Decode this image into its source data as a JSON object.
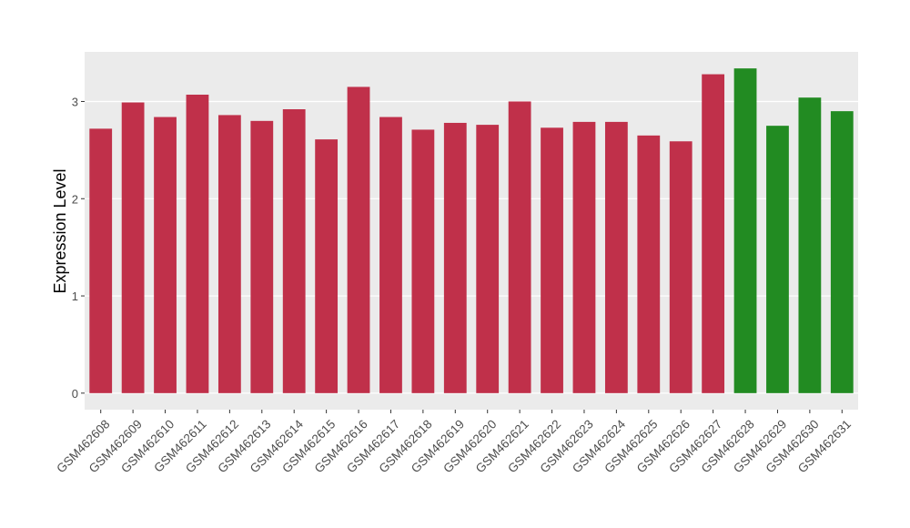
{
  "chart_data": {
    "type": "bar",
    "y_label": "Expression Level",
    "categories": [
      "GSM462608",
      "GSM462609",
      "GSM462610",
      "GSM462611",
      "GSM462612",
      "GSM462613",
      "GSM462614",
      "GSM462615",
      "GSM462616",
      "GSM462617",
      "GSM462618",
      "GSM462619",
      "GSM462620",
      "GSM462621",
      "GSM462622",
      "GSM462623",
      "GSM462624",
      "GSM462625",
      "GSM462626",
      "GSM462627",
      "GSM462628",
      "GSM462629",
      "GSM462630",
      "GSM462631"
    ],
    "values": [
      2.72,
      2.99,
      2.84,
      3.07,
      2.86,
      2.8,
      2.92,
      2.61,
      3.15,
      2.84,
      2.71,
      2.78,
      2.76,
      3.0,
      2.73,
      2.79,
      2.79,
      2.65,
      2.59,
      3.28,
      3.34,
      2.75,
      3.04,
      2.9
    ],
    "colors": [
      "#c0304a",
      "#c0304a",
      "#c0304a",
      "#c0304a",
      "#c0304a",
      "#c0304a",
      "#c0304a",
      "#c0304a",
      "#c0304a",
      "#c0304a",
      "#c0304a",
      "#c0304a",
      "#c0304a",
      "#c0304a",
      "#c0304a",
      "#c0304a",
      "#c0304a",
      "#c0304a",
      "#c0304a",
      "#c0304a",
      "#228b22",
      "#228b22",
      "#228b22",
      "#228b22"
    ],
    "ylim": [
      -0.17,
      3.51
    ],
    "yticks": [
      0,
      1,
      2,
      3
    ],
    "grid": true
  }
}
